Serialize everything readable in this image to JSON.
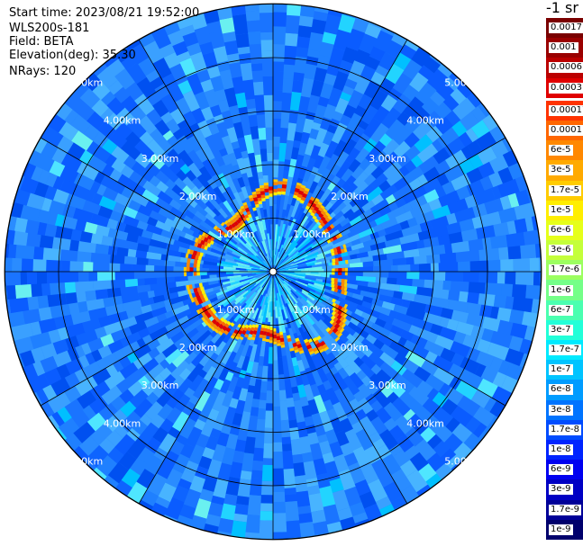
{
  "header": {
    "start_time": "Start time: 2023/08/21 19:52:00",
    "instrument": "WLS200s-181",
    "field": "Field: BETA",
    "elevation": "Elevation(deg): 35.30",
    "nrays": "NRays: 120"
  },
  "colorbar": {
    "unit_label": "-1 sr",
    "levels": [
      {
        "label": "0.0017",
        "color": "#7a0000"
      },
      {
        "label": "0.001",
        "color": "#9a0000"
      },
      {
        "label": "0.0006",
        "color": "#bb0000"
      },
      {
        "label": "0.0003",
        "color": "#e00000"
      },
      {
        "label": "0.00017",
        "color": "#ff3300"
      },
      {
        "label": "0.0001",
        "color": "#ff6600"
      },
      {
        "label": "6e-5",
        "color": "#ff8800"
      },
      {
        "label": "3e-5",
        "color": "#ffaa00"
      },
      {
        "label": "1.7e-5",
        "color": "#ffcc00"
      },
      {
        "label": "1e-5",
        "color": "#ffee00"
      },
      {
        "label": "6e-6",
        "color": "#e6ff1a"
      },
      {
        "label": "3e-6",
        "color": "#c4ff3a"
      },
      {
        "label": "1.7e-6",
        "color": "#9cff60"
      },
      {
        "label": "1e-6",
        "color": "#74ff88"
      },
      {
        "label": "6e-7",
        "color": "#4affb0"
      },
      {
        "label": "3e-7",
        "color": "#22ffd8"
      },
      {
        "label": "1.7e-7",
        "color": "#00eaff"
      },
      {
        "label": "1e-7",
        "color": "#00c4ff"
      },
      {
        "label": "6e-8",
        "color": "#009cff"
      },
      {
        "label": "3e-8",
        "color": "#0074ff"
      },
      {
        "label": "1.7e-8",
        "color": "#004cff"
      },
      {
        "label": "1e-8",
        "color": "#0024ff"
      },
      {
        "label": "6e-9",
        "color": "#0000f0"
      },
      {
        "label": "3e-9",
        "color": "#0000c4"
      },
      {
        "label": "1.7e-9",
        "color": "#000098"
      },
      {
        "label": "1e-9",
        "color": "#00006c"
      }
    ]
  },
  "rings": {
    "ring_labels": [
      "1.00km",
      "2.00km",
      "3.00km",
      "4.00km",
      "5.00km"
    ],
    "ring_km": [
      1,
      2,
      3,
      4,
      5
    ]
  }
}
